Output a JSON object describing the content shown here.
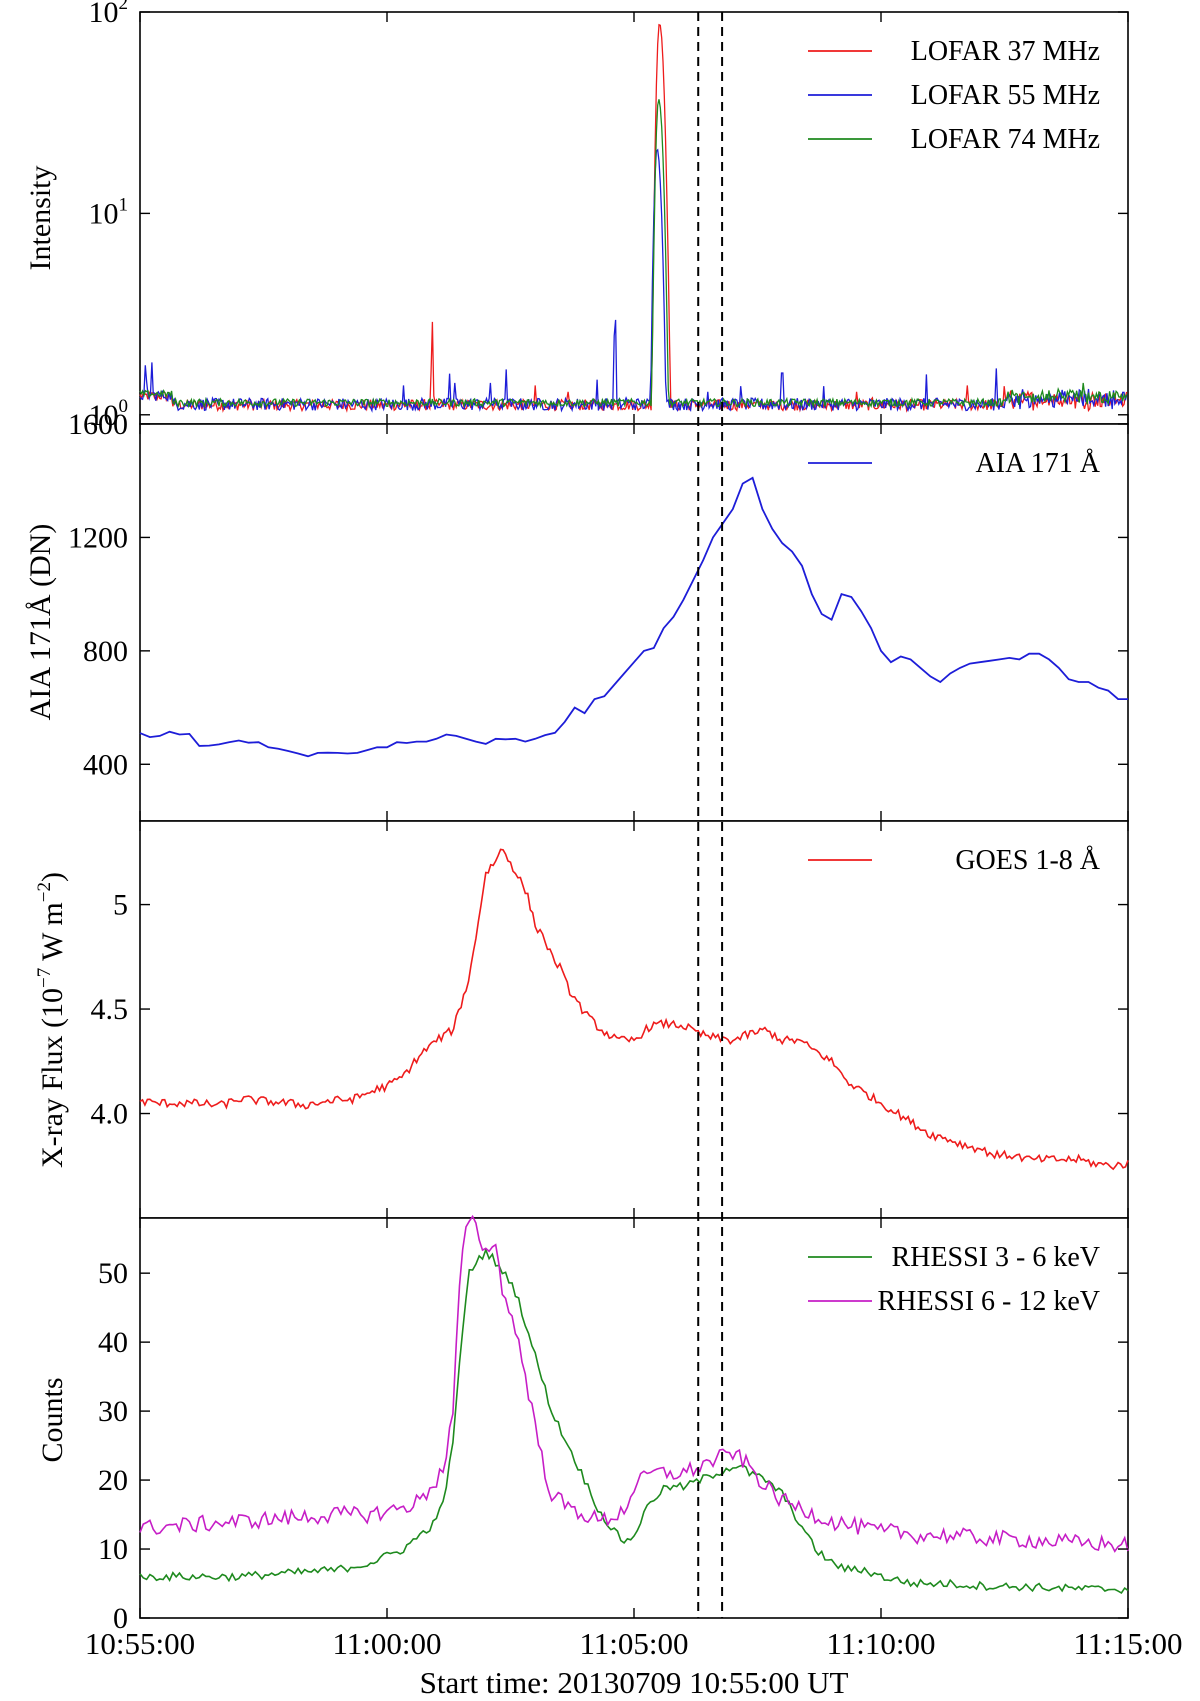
{
  "chart_data": [
    {
      "type": "line",
      "scale": "log",
      "ylabel": "Intensity",
      "ylim": [
        0.9,
        100
      ],
      "yticks": [
        {
          "value": 1,
          "base": "10",
          "exp": "0"
        },
        {
          "value": 10,
          "base": "10",
          "exp": "1"
        },
        {
          "value": 100,
          "base": "10",
          "exp": "2"
        }
      ],
      "xlim": [
        0,
        1200
      ],
      "legend_position": "upper right",
      "series": [
        {
          "name": "LOFAR 37 MHz",
          "color": "#ee1c1c",
          "baseline": 1.12,
          "noise": 0.07,
          "spikes": [
            [
              9,
              1.3
            ],
            [
              20,
              1.5
            ],
            [
              300,
              1.4
            ],
            [
              355,
              3.1
            ],
            [
              480,
              1.4
            ],
            [
              520,
              1.3
            ],
            [
              612,
              1.5
            ],
            [
              635,
              1.6
            ],
            [
              870,
              1.5
            ],
            [
              890,
              1.4
            ],
            [
              1005,
              1.5
            ],
            [
              1050,
              1.6
            ]
          ],
          "peak": {
            "x": 631,
            "value": 88
          }
        },
        {
          "name": "LOFAR 55 MHz",
          "color": "#1d1dd8",
          "baseline": 1.13,
          "noise": 0.08,
          "spikes": [
            [
              7,
              2.2
            ],
            [
              14,
              2.1
            ],
            [
              320,
              1.4
            ],
            [
              376,
              1.6
            ],
            [
              383,
              1.8
            ],
            [
              425,
              1.8
            ],
            [
              445,
              1.8
            ],
            [
              555,
              1.6
            ],
            [
              577,
              3.7
            ],
            [
              590,
              1.4
            ],
            [
              690,
              1.5
            ],
            [
              730,
              1.6
            ],
            [
              780,
              2.2
            ],
            [
              830,
              1.6
            ],
            [
              913,
              1.5
            ],
            [
              955,
              1.7
            ],
            [
              1040,
              1.7
            ],
            [
              1140,
              1.6
            ],
            [
              1175,
              1.6
            ]
          ],
          "peak": {
            "x": 628,
            "value": 21
          }
        },
        {
          "name": "LOFAR 74 MHz",
          "color": "#1e8a1e",
          "baseline": 1.15,
          "noise": 0.05,
          "spikes": [
            [
              10,
              1.5
            ],
            [
              18,
              1.4
            ],
            [
              740,
              1.4
            ],
            [
              1145,
              1.8
            ]
          ],
          "peak": {
            "x": 630,
            "value": 37
          }
        }
      ]
    },
    {
      "type": "line",
      "ylabel": "AIA 171Å (DN)",
      "ylim": [
        200,
        1600
      ],
      "yticks": [
        400,
        800,
        1200,
        1600
      ],
      "xlim": [
        0,
        1200
      ],
      "legend_position": "upper right",
      "series": [
        {
          "name": "AIA 171 Å",
          "color": "#1d1dd8",
          "x": [
            0,
            12,
            24,
            36,
            48,
            60,
            72,
            84,
            96,
            108,
            120,
            132,
            144,
            156,
            168,
            180,
            192,
            204,
            216,
            228,
            240,
            252,
            264,
            276,
            288,
            300,
            312,
            324,
            336,
            348,
            360,
            372,
            384,
            396,
            408,
            420,
            432,
            444,
            456,
            468,
            480,
            492,
            504,
            516,
            528,
            540,
            552,
            564,
            576,
            588,
            600,
            612,
            624,
            636,
            648,
            660,
            672,
            684,
            696,
            708,
            720,
            732,
            744,
            756,
            768,
            780,
            792,
            804,
            816,
            828,
            840,
            852,
            864,
            876,
            888,
            900,
            912,
            924,
            936,
            948,
            960,
            972,
            984,
            996,
            1008,
            1020,
            1032,
            1044,
            1056,
            1068,
            1080,
            1092,
            1104,
            1116,
            1128,
            1140,
            1152,
            1164,
            1176,
            1188,
            1200
          ],
          "values": [
            510,
            496,
            500,
            515,
            505,
            507,
            465,
            466,
            470,
            478,
            484,
            476,
            478,
            460,
            455,
            447,
            438,
            428,
            440,
            441,
            440,
            438,
            440,
            450,
            460,
            460,
            478,
            475,
            480,
            480,
            490,
            505,
            500,
            490,
            480,
            472,
            490,
            488,
            490,
            480,
            490,
            503,
            511,
            550,
            600,
            580,
            630,
            640,
            680,
            720,
            760,
            800,
            810,
            880,
            920,
            980,
            1050,
            1120,
            1200,
            1250,
            1300,
            1390,
            1410,
            1300,
            1230,
            1180,
            1150,
            1100,
            1000,
            930,
            910,
            1000,
            990,
            940,
            880,
            800,
            760,
            780,
            770,
            740,
            710,
            690,
            720,
            740,
            755,
            760,
            765,
            770,
            775,
            770,
            790,
            790,
            770,
            740,
            700,
            690,
            690,
            670,
            660,
            630,
            630
          ]
        }
      ]
    },
    {
      "type": "line",
      "ylabel": "X-ray Flux (10",
      "ylabel_exp": "−7",
      "ylabel_tail": " W m",
      "ylabel_exp2": "−2",
      "ylabel_close": ")",
      "ylim": [
        3.5,
        5.4
      ],
      "yticks": [
        4.0,
        4.5,
        5.0
      ],
      "yticks_labels": [
        "4.0",
        "4.5",
        "5"
      ],
      "xlim": [
        0,
        1200
      ],
      "legend_position": "upper right",
      "series": [
        {
          "name": "GOES 1-8 Å",
          "color": "#ee1c1c",
          "noise": 0.02,
          "x": [
            0,
            20,
            60,
            100,
            120,
            150,
            180,
            200,
            230,
            260,
            290,
            300,
            320,
            340,
            360,
            380,
            400,
            410,
            420,
            430,
            440,
            450,
            460,
            470,
            480,
            490,
            500,
            510,
            520,
            540,
            560,
            580,
            600,
            620,
            640,
            660,
            680,
            700,
            720,
            740,
            760,
            780,
            800,
            820,
            840,
            860,
            880,
            900,
            920,
            940,
            960,
            980,
            1000,
            1020,
            1040,
            1060,
            1080,
            1100,
            1120,
            1140,
            1160,
            1180,
            1200
          ],
          "values": [
            4.06,
            4.05,
            4.05,
            4.04,
            4.07,
            4.06,
            4.05,
            4.04,
            4.06,
            4.07,
            4.12,
            4.13,
            4.18,
            4.28,
            4.35,
            4.4,
            4.65,
            4.9,
            5.15,
            5.2,
            5.27,
            5.2,
            5.13,
            5.05,
            4.9,
            4.85,
            4.75,
            4.7,
            4.6,
            4.48,
            4.4,
            4.35,
            4.35,
            4.42,
            4.43,
            4.42,
            4.38,
            4.36,
            4.35,
            4.38,
            4.4,
            4.35,
            4.35,
            4.3,
            4.25,
            4.15,
            4.1,
            4.05,
            4.0,
            3.95,
            3.9,
            3.88,
            3.85,
            3.83,
            3.8,
            3.8,
            3.78,
            3.78,
            3.78,
            3.78,
            3.76,
            3.75,
            3.76
          ]
        }
      ]
    },
    {
      "type": "line",
      "ylabel": "Counts",
      "ylim": [
        0,
        58
      ],
      "yticks": [
        0,
        10,
        20,
        30,
        40,
        50
      ],
      "xlabel": "Start time: 20130709 10:55:00 UT",
      "xlim": [
        0,
        1200
      ],
      "xticks": [
        {
          "value": 0,
          "label": "10:55:00"
        },
        {
          "value": 300,
          "label": "11:00:00"
        },
        {
          "value": 600,
          "label": "11:05:00"
        },
        {
          "value": 900,
          "label": "11:10:00"
        },
        {
          "value": 1200,
          "label": "11:15:00"
        }
      ],
      "legend_position": "upper right",
      "series": [
        {
          "name": "RHESSI 3 - 6 keV",
          "color": "#1e8a1e",
          "noise": 0.6,
          "x": [
            0,
            60,
            120,
            180,
            240,
            280,
            300,
            320,
            340,
            360,
            370,
            380,
            390,
            400,
            410,
            420,
            430,
            440,
            450,
            460,
            470,
            480,
            490,
            500,
            520,
            540,
            560,
            580,
            590,
            600,
            620,
            640,
            660,
            680,
            700,
            720,
            730,
            740,
            760,
            780,
            800,
            820,
            840,
            860,
            880,
            900,
            920,
            940,
            960,
            980,
            1000,
            1040,
            1080,
            1120,
            1160,
            1200
          ],
          "values": [
            6,
            6,
            6,
            6.5,
            7,
            8,
            9,
            10,
            12,
            14,
            18,
            25,
            40,
            50,
            52,
            53,
            52,
            50,
            49,
            46,
            42,
            38,
            34,
            30,
            25,
            20,
            15,
            12,
            11,
            12,
            17,
            19,
            19,
            20,
            21,
            22,
            22,
            21,
            20,
            18,
            14,
            10,
            8,
            7,
            7,
            6,
            5.5,
            5,
            5,
            5,
            4.8,
            4.6,
            4.5,
            4.3,
            4.2,
            4.2
          ]
        },
        {
          "name": "RHESSI 6 - 12 keV",
          "color": "#c61ec6",
          "noise": 1.2,
          "x": [
            0,
            60,
            120,
            180,
            240,
            280,
            300,
            320,
            340,
            360,
            370,
            380,
            390,
            400,
            410,
            420,
            430,
            440,
            450,
            460,
            470,
            480,
            490,
            500,
            520,
            540,
            560,
            580,
            590,
            600,
            620,
            640,
            660,
            680,
            700,
            720,
            730,
            740,
            760,
            780,
            800,
            820,
            840,
            860,
            880,
            900,
            920,
            940,
            960,
            980,
            1000,
            1040,
            1080,
            1120,
            1160,
            1200
          ],
          "values": [
            13,
            13.5,
            14,
            14.5,
            15,
            15,
            15.5,
            16,
            17,
            20,
            22,
            30,
            52,
            58,
            56,
            53,
            55,
            48,
            44,
            40,
            34,
            28,
            22,
            18,
            16,
            15,
            14,
            15,
            16,
            19,
            21,
            21,
            21,
            22,
            23,
            24,
            23,
            22,
            19,
            17,
            16,
            15,
            14,
            13.5,
            13,
            12.5,
            12.5,
            12,
            12,
            12,
            11.8,
            11.5,
            11.3,
            11,
            10.8,
            10.5
          ]
        }
      ]
    }
  ],
  "markers": {
    "dashed_x": [
      678,
      707
    ]
  }
}
